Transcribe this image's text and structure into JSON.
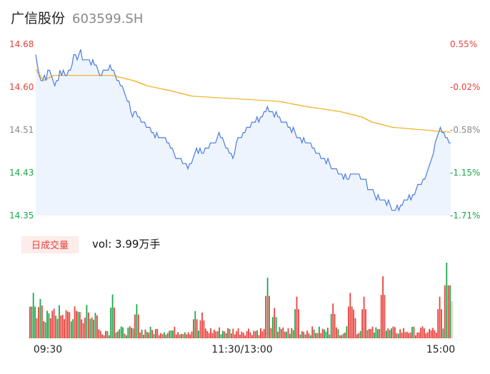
{
  "header": {
    "name": "广信股份",
    "code": "603599.SH"
  },
  "colors": {
    "up": "#e8413c",
    "down": "#1aa84b",
    "price_line": "#4a7be0",
    "avg_line": "#f2b631",
    "fill": "#eef4fd",
    "neutral_vol": "#f0a9a5"
  },
  "volume_panel": {
    "legend_label": "日成交量",
    "vol_text": "vol: 3.99万手"
  },
  "chart_data": {
    "type": "line",
    "title": "广信股份 603599.SH",
    "y_left_ticks": [
      "14.68",
      "14.60",
      "14.51",
      "14.43",
      "14.35"
    ],
    "y_right_ticks": [
      "0.55%",
      "-0.02%",
      "-0.58%",
      "-1.15%",
      "-1.71%"
    ],
    "ylim": [
      14.35,
      14.68
    ],
    "x_ticks": [
      "09:30",
      "11:30/13:00",
      "15:00"
    ],
    "n_points": 241,
    "price_keyframes": [
      [
        0,
        14.66
      ],
      [
        2,
        14.62
      ],
      [
        4,
        14.61
      ],
      [
        6,
        14.62
      ],
      [
        8,
        14.63
      ],
      [
        11,
        14.6
      ],
      [
        14,
        14.63
      ],
      [
        18,
        14.62
      ],
      [
        22,
        14.65
      ],
      [
        26,
        14.66
      ],
      [
        30,
        14.65
      ],
      [
        35,
        14.64
      ],
      [
        38,
        14.62
      ],
      [
        42,
        14.64
      ],
      [
        45,
        14.63
      ],
      [
        50,
        14.6
      ],
      [
        56,
        14.55
      ],
      [
        62,
        14.53
      ],
      [
        68,
        14.51
      ],
      [
        72,
        14.5
      ],
      [
        78,
        14.48
      ],
      [
        84,
        14.46
      ],
      [
        88,
        14.44
      ],
      [
        93,
        14.48
      ],
      [
        97,
        14.47
      ],
      [
        102,
        14.49
      ],
      [
        106,
        14.51
      ],
      [
        110,
        14.48
      ],
      [
        114,
        14.47
      ],
      [
        118,
        14.5
      ],
      [
        122,
        14.52
      ],
      [
        126,
        14.53
      ],
      [
        130,
        14.54
      ],
      [
        134,
        14.56
      ],
      [
        138,
        14.55
      ],
      [
        142,
        14.53
      ],
      [
        148,
        14.52
      ],
      [
        154,
        14.5
      ],
      [
        160,
        14.48
      ],
      [
        166,
        14.46
      ],
      [
        172,
        14.44
      ],
      [
        178,
        14.42
      ],
      [
        184,
        14.43
      ],
      [
        190,
        14.42
      ],
      [
        196,
        14.39
      ],
      [
        202,
        14.38
      ],
      [
        207,
        14.36
      ],
      [
        212,
        14.37
      ],
      [
        218,
        14.39
      ],
      [
        222,
        14.41
      ],
      [
        226,
        14.43
      ],
      [
        230,
        14.48
      ],
      [
        234,
        14.52
      ],
      [
        238,
        14.5
      ],
      [
        241,
        14.49
      ]
    ],
    "avg_keyframes": [
      [
        0,
        14.63
      ],
      [
        4,
        14.61
      ],
      [
        10,
        14.62
      ],
      [
        44,
        14.62
      ],
      [
        56,
        14.61
      ],
      [
        64,
        14.6
      ],
      [
        78,
        14.59
      ],
      [
        90,
        14.58
      ],
      [
        140,
        14.57
      ],
      [
        156,
        14.56
      ],
      [
        176,
        14.55
      ],
      [
        188,
        14.54
      ],
      [
        194,
        14.53
      ],
      [
        206,
        14.52
      ],
      [
        241,
        14.51
      ]
    ],
    "volume_peaks": [
      [
        2,
        0.6
      ],
      [
        5,
        0.38
      ],
      [
        6,
        0.52
      ],
      [
        22,
        0.35
      ],
      [
        48,
        0.58
      ],
      [
        62,
        0.45
      ],
      [
        96,
        0.36
      ],
      [
        100,
        0.34
      ],
      [
        138,
        0.8
      ],
      [
        142,
        0.4
      ],
      [
        155,
        0.55
      ],
      [
        176,
        0.46
      ],
      [
        186,
        0.6
      ],
      [
        188,
        0.38
      ],
      [
        194,
        0.55
      ],
      [
        205,
        0.82
      ],
      [
        238,
        0.55
      ],
      [
        242,
        1.0
      ],
      [
        244,
        0.7
      ]
    ]
  }
}
